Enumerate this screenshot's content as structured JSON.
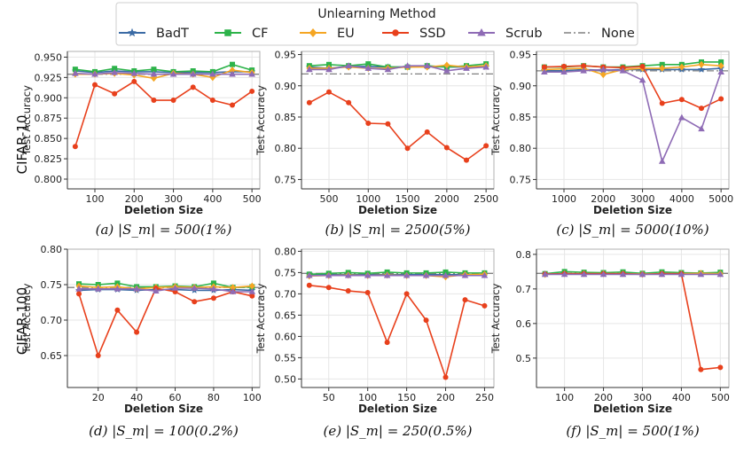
{
  "legend": {
    "title": "Unlearning Method",
    "entries": [
      {
        "name": "BadT",
        "color": "#3B6BA5",
        "marker": "star"
      },
      {
        "name": "CF",
        "color": "#2DB34A",
        "marker": "square"
      },
      {
        "name": "EU",
        "color": "#F5A623",
        "marker": "diamond"
      },
      {
        "name": "SSD",
        "color": "#E8401C",
        "marker": "circle"
      },
      {
        "name": "Scrub",
        "color": "#8E6BB5",
        "marker": "triangle"
      },
      {
        "name": "None",
        "color": "#808080",
        "marker": "dashdot"
      }
    ]
  },
  "rows": [
    "CIFAR-10",
    "CIFAR-100"
  ],
  "chart_data": [
    {
      "type": "line",
      "caption": "(a) |S_m| = 500(1%)",
      "xlabel": "Deletion Size",
      "ylabel": "Test Accuracy",
      "xlim": [
        30,
        520
      ],
      "ylim": [
        0.788,
        0.957
      ],
      "xticks": [
        100,
        200,
        300,
        400,
        500
      ],
      "yticks": [
        0.8,
        0.825,
        0.85,
        0.875,
        0.9,
        0.925,
        0.95
      ],
      "ytick_labels": [
        "0.800",
        "0.825",
        "0.850",
        "0.875",
        "0.900",
        "0.925",
        "0.950"
      ],
      "x": [
        50,
        100,
        150,
        200,
        250,
        300,
        350,
        400,
        450,
        500
      ],
      "series": [
        {
          "name": "BadT",
          "values": [
            0.933,
            0.931,
            0.933,
            0.932,
            0.932,
            0.931,
            0.931,
            0.931,
            0.932,
            0.932
          ]
        },
        {
          "name": "CF",
          "values": [
            0.935,
            0.932,
            0.936,
            0.933,
            0.935,
            0.932,
            0.933,
            0.932,
            0.941,
            0.934
          ]
        },
        {
          "name": "EU",
          "values": [
            0.929,
            0.929,
            0.93,
            0.928,
            0.924,
            0.93,
            0.929,
            0.925,
            0.934,
            0.931
          ]
        },
        {
          "name": "SSD",
          "values": [
            0.84,
            0.916,
            0.905,
            0.92,
            0.897,
            0.897,
            0.913,
            0.897,
            0.891,
            0.908
          ]
        },
        {
          "name": "Scrub",
          "values": [
            0.93,
            0.929,
            0.931,
            0.93,
            0.929,
            0.929,
            0.929,
            0.929,
            0.929,
            0.929
          ]
        }
      ],
      "baseline": 0.929
    },
    {
      "type": "line",
      "caption": "(b) |S_m| = 2500(5%)",
      "xlabel": "Deletion Size",
      "ylabel": "Test Accuracy",
      "xlim": [
        150,
        2600
      ],
      "ylim": [
        0.735,
        0.955
      ],
      "xticks": [
        500,
        1000,
        1500,
        2000,
        2500
      ],
      "yticks": [
        0.75,
        0.8,
        0.85,
        0.9,
        0.95
      ],
      "ytick_labels": [
        "0.75",
        "0.80",
        "0.85",
        "0.90",
        "0.95"
      ],
      "x": [
        250,
        500,
        750,
        1000,
        1250,
        1500,
        1750,
        2000,
        2250,
        2500
      ],
      "series": [
        {
          "name": "BadT",
          "values": [
            0.93,
            0.928,
            0.931,
            0.931,
            0.93,
            0.93,
            0.931,
            0.93,
            0.93,
            0.93
          ]
        },
        {
          "name": "CF",
          "values": [
            0.932,
            0.934,
            0.932,
            0.935,
            0.93,
            0.93,
            0.932,
            0.93,
            0.932,
            0.935
          ]
        },
        {
          "name": "EU",
          "values": [
            0.928,
            0.928,
            0.93,
            0.928,
            0.928,
            0.93,
            0.93,
            0.933,
            0.93,
            0.932
          ]
        },
        {
          "name": "SSD",
          "values": [
            0.873,
            0.89,
            0.873,
            0.84,
            0.839,
            0.8,
            0.826,
            0.801,
            0.781,
            0.804
          ]
        },
        {
          "name": "Scrub",
          "values": [
            0.926,
            0.926,
            0.932,
            0.928,
            0.926,
            0.932,
            0.932,
            0.924,
            0.928,
            0.93
          ]
        }
      ],
      "baseline": 0.919
    },
    {
      "type": "line",
      "caption": "(c) |S_m| = 5000(10%)",
      "xlabel": "Deletion Size",
      "ylabel": "Test Accuracy",
      "xlim": [
        300,
        5200
      ],
      "ylim": [
        0.735,
        0.955
      ],
      "xticks": [
        1000,
        2000,
        3000,
        4000,
        5000
      ],
      "yticks": [
        0.75,
        0.8,
        0.85,
        0.9,
        0.95
      ],
      "ytick_labels": [
        "0.75",
        "0.80",
        "0.85",
        "0.90",
        "0.95"
      ],
      "x": [
        500,
        1000,
        1500,
        2000,
        2500,
        3000,
        3500,
        4000,
        4500,
        5000
      ],
      "series": [
        {
          "name": "BadT",
          "values": [
            0.924,
            0.924,
            0.926,
            0.925,
            0.926,
            0.926,
            0.926,
            0.926,
            0.926,
            0.928
          ]
        },
        {
          "name": "CF",
          "values": [
            0.93,
            0.93,
            0.932,
            0.93,
            0.93,
            0.932,
            0.934,
            0.934,
            0.938,
            0.938
          ]
        },
        {
          "name": "EU",
          "values": [
            0.926,
            0.927,
            0.928,
            0.918,
            0.926,
            0.928,
            0.928,
            0.93,
            0.934,
            0.932
          ]
        },
        {
          "name": "SSD",
          "values": [
            0.93,
            0.931,
            0.932,
            0.93,
            0.929,
            0.931,
            0.872,
            0.878,
            0.864,
            0.879
          ]
        },
        {
          "name": "Scrub",
          "values": [
            0.922,
            0.922,
            0.924,
            0.926,
            0.924,
            0.909,
            0.779,
            0.849,
            0.831,
            0.922
          ]
        }
      ],
      "baseline": 0.924
    },
    {
      "type": "line",
      "caption": "(d) |S_m| = 100(0.2%)",
      "xlabel": "Deletion Size",
      "ylabel": "Test Accuracy",
      "xlim": [
        4,
        104
      ],
      "ylim": [
        0.605,
        0.8
      ],
      "xticks": [
        20,
        40,
        60,
        80,
        100
      ],
      "yticks": [
        0.65,
        0.7,
        0.75,
        0.8
      ],
      "ytick_labels": [
        "0.65",
        "0.70",
        "0.75",
        "0.80"
      ],
      "x": [
        10,
        20,
        30,
        40,
        50,
        60,
        70,
        80,
        90,
        100
      ],
      "series": [
        {
          "name": "BadT",
          "values": [
            0.742,
            0.743,
            0.743,
            0.742,
            0.743,
            0.743,
            0.742,
            0.742,
            0.743,
            0.742
          ]
        },
        {
          "name": "CF",
          "values": [
            0.751,
            0.75,
            0.752,
            0.747,
            0.747,
            0.748,
            0.747,
            0.752,
            0.746,
            0.747
          ]
        },
        {
          "name": "EU",
          "values": [
            0.748,
            0.746,
            0.747,
            0.744,
            0.746,
            0.747,
            0.746,
            0.747,
            0.746,
            0.748
          ]
        },
        {
          "name": "SSD",
          "values": [
            0.737,
            0.65,
            0.714,
            0.683,
            0.745,
            0.74,
            0.726,
            0.731,
            0.74,
            0.734
          ]
        },
        {
          "name": "Scrub",
          "values": [
            0.744,
            0.744,
            0.744,
            0.744,
            0.741,
            0.745,
            0.745,
            0.744,
            0.74,
            0.74
          ]
        }
      ],
      "baseline": 0.746
    },
    {
      "type": "line",
      "caption": "(e) |S_m| = 250(0.5%)",
      "xlabel": "Deletion Size",
      "ylabel": "Test Accuracy",
      "xlim": [
        15,
        262
      ],
      "ylim": [
        0.48,
        0.805
      ],
      "xticks": [
        50,
        100,
        150,
        200,
        250
      ],
      "yticks": [
        0.5,
        0.55,
        0.6,
        0.65,
        0.7,
        0.75,
        0.8
      ],
      "ytick_labels": [
        "0.50",
        "0.55",
        "0.60",
        "0.65",
        "0.70",
        "0.75",
        "0.80"
      ],
      "x": [
        25,
        50,
        75,
        100,
        125,
        150,
        175,
        200,
        225,
        250
      ],
      "series": [
        {
          "name": "BadT",
          "values": [
            0.745,
            0.745,
            0.745,
            0.745,
            0.745,
            0.745,
            0.745,
            0.745,
            0.745,
            0.745
          ]
        },
        {
          "name": "CF",
          "values": [
            0.746,
            0.748,
            0.75,
            0.748,
            0.751,
            0.749,
            0.749,
            0.751,
            0.749,
            0.749
          ]
        },
        {
          "name": "EU",
          "values": [
            0.742,
            0.743,
            0.744,
            0.743,
            0.744,
            0.743,
            0.743,
            0.74,
            0.745,
            0.746
          ]
        },
        {
          "name": "SSD",
          "values": [
            0.72,
            0.715,
            0.707,
            0.703,
            0.586,
            0.7,
            0.638,
            0.504,
            0.686,
            0.672
          ]
        },
        {
          "name": "Scrub",
          "values": [
            0.743,
            0.743,
            0.743,
            0.743,
            0.743,
            0.743,
            0.743,
            0.743,
            0.743,
            0.743
          ]
        }
      ],
      "baseline": 0.748
    },
    {
      "type": "line",
      "caption": "(f) |S_m| = 500(1%)",
      "xlabel": "Deletion Size",
      "ylabel": "Test Accuracy",
      "xlim": [
        28,
        522
      ],
      "ylim": [
        0.415,
        0.815
      ],
      "xticks": [
        100,
        200,
        300,
        400,
        500
      ],
      "yticks": [
        0.5,
        0.6,
        0.7,
        0.8
      ],
      "ytick_labels": [
        "0.5",
        "0.6",
        "0.7",
        "0.8"
      ],
      "x": [
        50,
        100,
        150,
        200,
        250,
        300,
        350,
        400,
        450,
        500
      ],
      "series": [
        {
          "name": "BadT",
          "values": [
            0.743,
            0.744,
            0.743,
            0.743,
            0.743,
            0.743,
            0.743,
            0.743,
            0.743,
            0.743
          ]
        },
        {
          "name": "CF",
          "values": [
            0.744,
            0.75,
            0.748,
            0.747,
            0.749,
            0.745,
            0.749,
            0.747,
            0.746,
            0.748
          ]
        },
        {
          "name": "EU",
          "values": [
            0.742,
            0.744,
            0.744,
            0.744,
            0.744,
            0.743,
            0.744,
            0.744,
            0.745,
            0.744
          ]
        },
        {
          "name": "SSD",
          "values": [
            0.743,
            0.744,
            0.744,
            0.744,
            0.744,
            0.742,
            0.744,
            0.744,
            0.467,
            0.473
          ]
        },
        {
          "name": "Scrub",
          "values": [
            0.742,
            0.742,
            0.742,
            0.742,
            0.742,
            0.742,
            0.742,
            0.742,
            0.742,
            0.742
          ]
        }
      ],
      "baseline": 0.745
    }
  ]
}
